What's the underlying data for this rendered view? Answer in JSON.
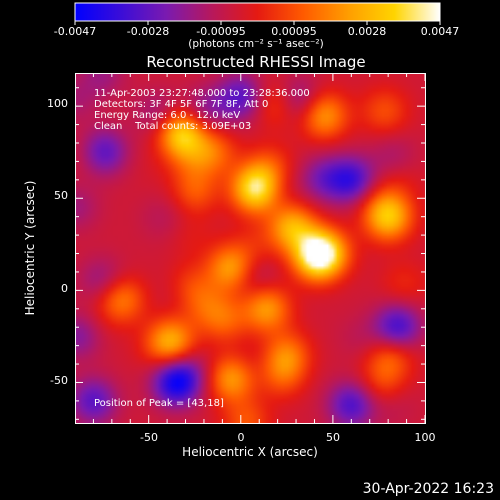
{
  "colorbar": {
    "ticks": [
      "-0.0047",
      "-0.0028",
      "-0.00095",
      "0.00095",
      "0.0028",
      "0.0047"
    ],
    "unit_label": "(photons cm⁻² s⁻¹ asec⁻²)",
    "colors": [
      "#0000ff",
      "#3a0dd8",
      "#7a1ab0",
      "#b7185c",
      "#e51a12",
      "#ff5a00",
      "#ff9e00",
      "#ffd400",
      "#ffffff"
    ]
  },
  "chart_data": {
    "type": "heatmap",
    "title": "Reconstructed RHESSI Image",
    "xlabel": "Heliocentric X (arcsec)",
    "ylabel": "Heliocentric Y (arcsec)",
    "xlim": [
      -90,
      100
    ],
    "ylim": [
      -72,
      118
    ],
    "xticks": [
      "-50",
      "0",
      "50",
      "100"
    ],
    "yticks": [
      "100",
      "50",
      "0",
      "-50"
    ],
    "value_range": [
      -0.0047,
      0.0047
    ],
    "peak_position": [
      43,
      18
    ],
    "hotspots": [
      {
        "x": 43,
        "y": 20,
        "level": 1.0
      },
      {
        "x": 8,
        "y": 55,
        "level": 0.95
      },
      {
        "x": 80,
        "y": 40,
        "level": 0.8
      },
      {
        "x": -32,
        "y": 85,
        "level": 0.85
      },
      {
        "x": 45,
        "y": 95,
        "level": 0.6
      },
      {
        "x": 28,
        "y": 34,
        "level": 0.7
      },
      {
        "x": -5,
        "y": 12,
        "level": 0.65
      },
      {
        "x": 14,
        "y": -10,
        "level": 0.6
      },
      {
        "x": -38,
        "y": -28,
        "level": 0.7
      },
      {
        "x": -5,
        "y": -48,
        "level": 0.6
      },
      {
        "x": -65,
        "y": -5,
        "level": 0.5
      },
      {
        "x": 25,
        "y": -35,
        "level": 0.45
      },
      {
        "x": -15,
        "y": 75,
        "level": 0.4
      }
    ],
    "coldspots": [
      {
        "x": -35,
        "y": -50,
        "level": -0.8
      },
      {
        "x": 60,
        "y": 60,
        "level": -0.6
      },
      {
        "x": -75,
        "y": 75,
        "level": -0.6
      },
      {
        "x": 85,
        "y": -20,
        "level": -0.6
      },
      {
        "x": -80,
        "y": -60,
        "level": -0.5
      },
      {
        "x": 60,
        "y": -62,
        "level": -0.55
      },
      {
        "x": 0,
        "y": 105,
        "level": -0.5
      }
    ]
  },
  "overlay": {
    "time_range": "11-Apr-2003 23:27:48.000 to 23:28:36.000",
    "detectors": "Detectors: 3F 4F 5F 6F 7F 8F, Att 0",
    "energy": "Energy Range: 6.0 - 12.0 keV",
    "clean": "Clean    Total counts: 3.09E+03",
    "peak": "Position of Peak = [43,18]"
  },
  "timestamp": "30-Apr-2022 16:23"
}
